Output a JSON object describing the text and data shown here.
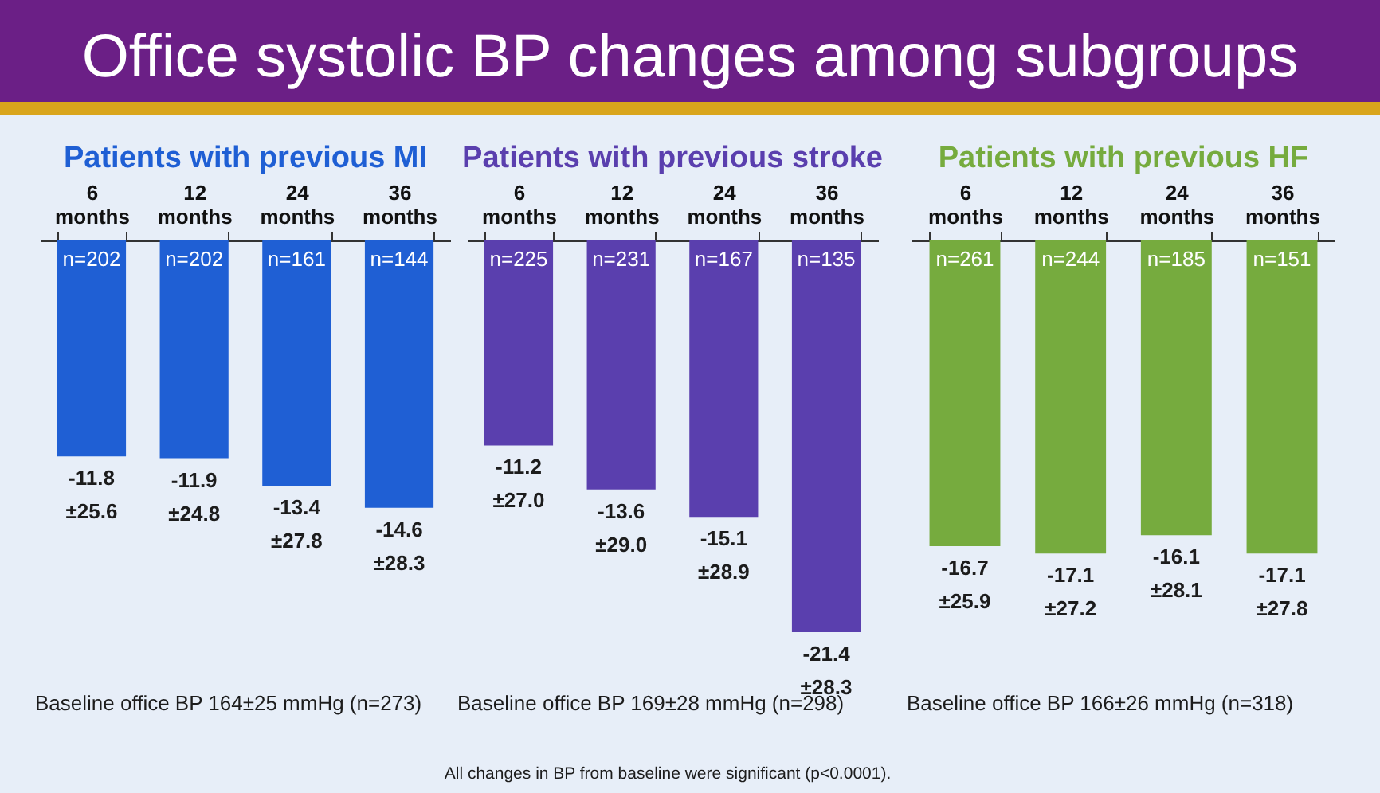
{
  "chart_data": [
    {
      "type": "bar",
      "title": "Office systolic BP changes among subgroups",
      "subtitle": "Patients with previous MI",
      "categories": [
        "6 months",
        "12 months",
        "24 months",
        "36 months"
      ],
      "values": [
        -11.8,
        -11.9,
        -13.4,
        -14.6
      ],
      "color": "#1f5fd4",
      "value_labels": [
        "-11.8\n±25.6",
        "-11.9\n±24.8",
        "-13.4\n±27.8",
        "-14.6\n±28.3"
      ],
      "tick_labels": "x",
      "annotations": [
        {
          "text": "n=202",
          "x": "6 months",
          "y": 0
        },
        {
          "text": "n=202",
          "x": "12 months",
          "y": 0
        },
        {
          "text": "n=161",
          "x": "24 months",
          "y": 0
        },
        {
          "text": "n=144",
          "x": "36 months",
          "y": 0
        },
        "Baseline office BP 164±25 mmHg (n=273)"
      ]
    },
    {
      "type": "bar",
      "subtitle": "Patients with previous stroke",
      "categories": [
        "6 months",
        "12 months",
        "24 months",
        "36 months"
      ],
      "values": [
        -11.2,
        -13.6,
        -15.1,
        -21.4
      ],
      "color": "#5a3fae",
      "value_labels": [
        "-11.2\n±27.0",
        "-13.6\n±29.0",
        "-15.1\n±28.9",
        "-21.4\n±28.3"
      ],
      "tick_labels": "x",
      "annotations": [
        {
          "text": "n=225",
          "x": "6 months",
          "y": 0
        },
        {
          "text": "n=231",
          "x": "12 months",
          "y": 0
        },
        {
          "text": "n=167",
          "x": "24 months",
          "y": 0
        },
        {
          "text": "n=135",
          "x": "36 months",
          "y": 0
        },
        "Baseline office BP 169±28 mmHg (n=298)",
        "All changes in BP from baseline were significant (p<0.0001)."
      ]
    },
    {
      "type": "bar",
      "subtitle": "Patients with previous HF",
      "categories": [
        "6 months",
        "12 months",
        "24 months",
        "36 months"
      ],
      "values": [
        -16.7,
        -17.1,
        -16.1,
        -17.1
      ],
      "color": "#76ab3e",
      "value_labels": [
        "-16.7\n±25.9",
        "-17.1\n±27.2",
        "-16.1\n±28.1",
        "-17.1\n±27.8"
      ],
      "tick_labels": "x",
      "annotations": [
        {
          "text": "n=261",
          "x": "6 months",
          "y": 0
        },
        {
          "text": "n=244",
          "x": "12 months",
          "y": 0
        },
        {
          "text": "n=185",
          "x": "24 months",
          "y": 0
        },
        {
          "text": "n=151",
          "x": "36 months",
          "y": 0
        },
        "Baseline office BP 166±26 mmHg (n=318)"
      ]
    }
  ]
}
